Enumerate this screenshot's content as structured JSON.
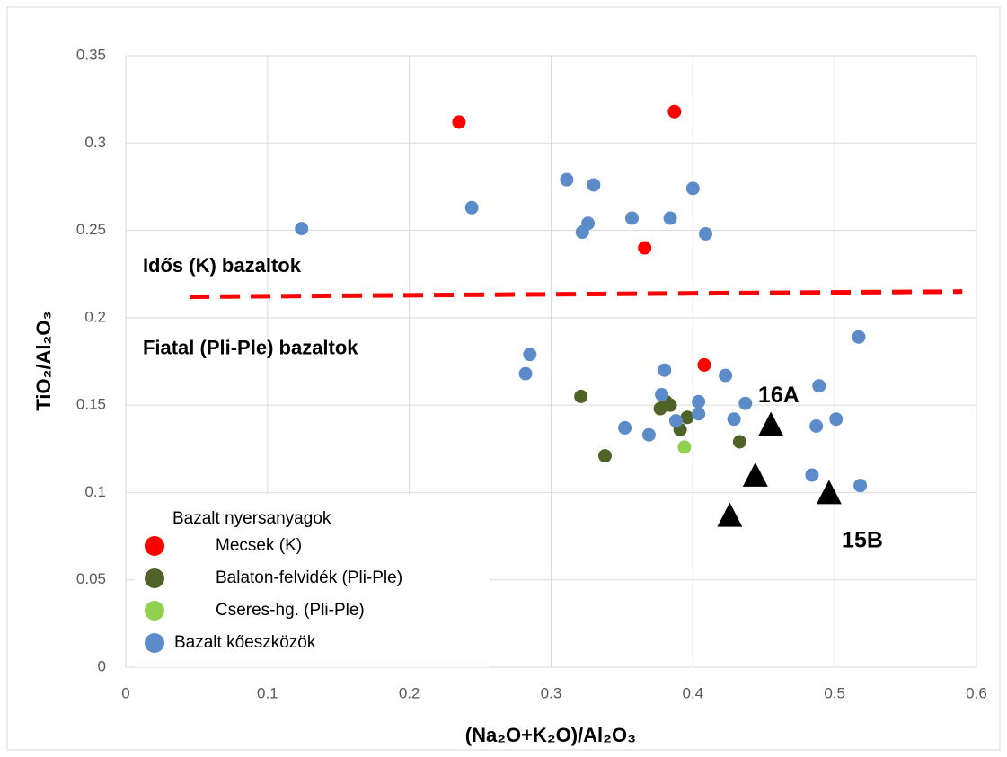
{
  "chart_data": {
    "type": "scatter",
    "x_label": "(Na₂O+K₂O)/Al₂O₃",
    "y_label": "TiO₂/Al₂O₃",
    "xlim": [
      0,
      0.6
    ],
    "xticks": [
      0,
      0.1,
      0.2,
      0.3,
      0.4,
      0.5,
      0.6
    ],
    "ylim": [
      0,
      0.35
    ],
    "yticks": [
      0,
      0.05,
      0.1,
      0.15,
      0.2,
      0.25,
      0.3,
      0.35
    ],
    "grid": true,
    "legend_title": "Bazalt nyersanyagok",
    "legend_position": "lower left",
    "series": [
      {
        "name": "Mecsek (K)",
        "color": "#ff0000",
        "marker": "circle",
        "x": [
          0.235,
          0.387,
          0.366,
          0.408
        ],
        "values": [
          0.312,
          0.318,
          0.24,
          0.173
        ]
      },
      {
        "name": "Balaton-felvidék (Pli-Ple)",
        "color": "#4f6228",
        "marker": "circle",
        "x": [
          0.321,
          0.338,
          0.377,
          0.381,
          0.384,
          0.391,
          0.396,
          0.433
        ],
        "values": [
          0.155,
          0.121,
          0.148,
          0.152,
          0.15,
          0.136,
          0.143,
          0.129
        ]
      },
      {
        "name": "Cseres-hg. (Pli-Ple)",
        "color": "#92d050",
        "marker": "circle",
        "x": [
          0.394
        ],
        "values": [
          0.126
        ]
      },
      {
        "name": "Bazalt kőeszközök",
        "color": "#5b8bc9",
        "marker": "circle",
        "x": [
          0.124,
          0.244,
          0.311,
          0.322,
          0.326,
          0.33,
          0.357,
          0.384,
          0.4,
          0.409,
          0.282,
          0.285,
          0.352,
          0.369,
          0.378,
          0.38,
          0.388,
          0.404,
          0.404,
          0.423,
          0.429,
          0.437,
          0.484,
          0.487,
          0.489,
          0.501,
          0.517,
          0.518
        ],
        "values": [
          0.251,
          0.263,
          0.279,
          0.249,
          0.254,
          0.276,
          0.257,
          0.257,
          0.274,
          0.248,
          0.168,
          0.179,
          0.137,
          0.133,
          0.156,
          0.17,
          0.141,
          0.152,
          0.145,
          0.167,
          0.142,
          0.151,
          0.11,
          0.138,
          0.161,
          0.142,
          0.189,
          0.104
        ]
      },
      {
        "color": "#000000",
        "marker": "triangle",
        "x": [
          0.426,
          0.444,
          0.455,
          0.496
        ],
        "values": [
          0.086,
          0.109,
          0.138,
          0.099
        ]
      }
    ],
    "reference_line": {
      "x": [
        0.045,
        0.59
      ],
      "y": [
        0.212,
        0.215
      ],
      "color": "#ff0000"
    },
    "annotations": [
      {
        "text": "Idős (K) bazaltok",
        "x": 0.012,
        "y": 0.229
      },
      {
        "text": "Fiatal (Pli-Ple) bazaltok",
        "x": 0.012,
        "y": 0.182
      },
      {
        "text": "16A",
        "x": 0.446,
        "y": 0.155
      },
      {
        "text": "15B",
        "x": 0.505,
        "y": 0.072
      }
    ]
  }
}
